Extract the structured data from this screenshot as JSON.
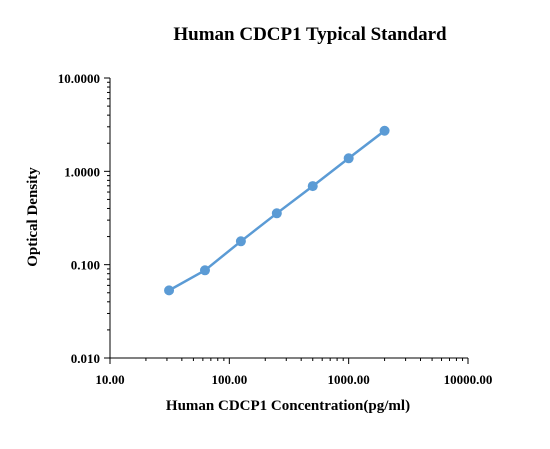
{
  "chart_data": {
    "type": "line",
    "title": "Human CDCP1 Typical Standard",
    "xlabel": "Human CDCP1 Concentration(pg/ml)",
    "ylabel": "Optical Density",
    "x_scale": "log",
    "y_scale": "log",
    "xlim": [
      10,
      10000
    ],
    "ylim": [
      0.01,
      10
    ],
    "x_ticks": [
      10,
      100,
      1000,
      10000
    ],
    "x_tick_labels": [
      "10.00",
      "100.00",
      "1000.00",
      "10000.00"
    ],
    "y_ticks": [
      0.01,
      0.1,
      1,
      10
    ],
    "y_tick_labels": [
      "0.010",
      "0.100",
      "1.0000",
      "10.0000"
    ],
    "grid": false,
    "legend": "none",
    "series": [
      {
        "x": [
          31.25,
          62.5,
          125,
          250,
          500,
          1000,
          2000
        ],
        "y": [
          0.053,
          0.087,
          0.178,
          0.355,
          0.695,
          1.38,
          2.72
        ]
      }
    ],
    "colors": {
      "series": "#5b9bd5",
      "axis": "#000000"
    }
  }
}
